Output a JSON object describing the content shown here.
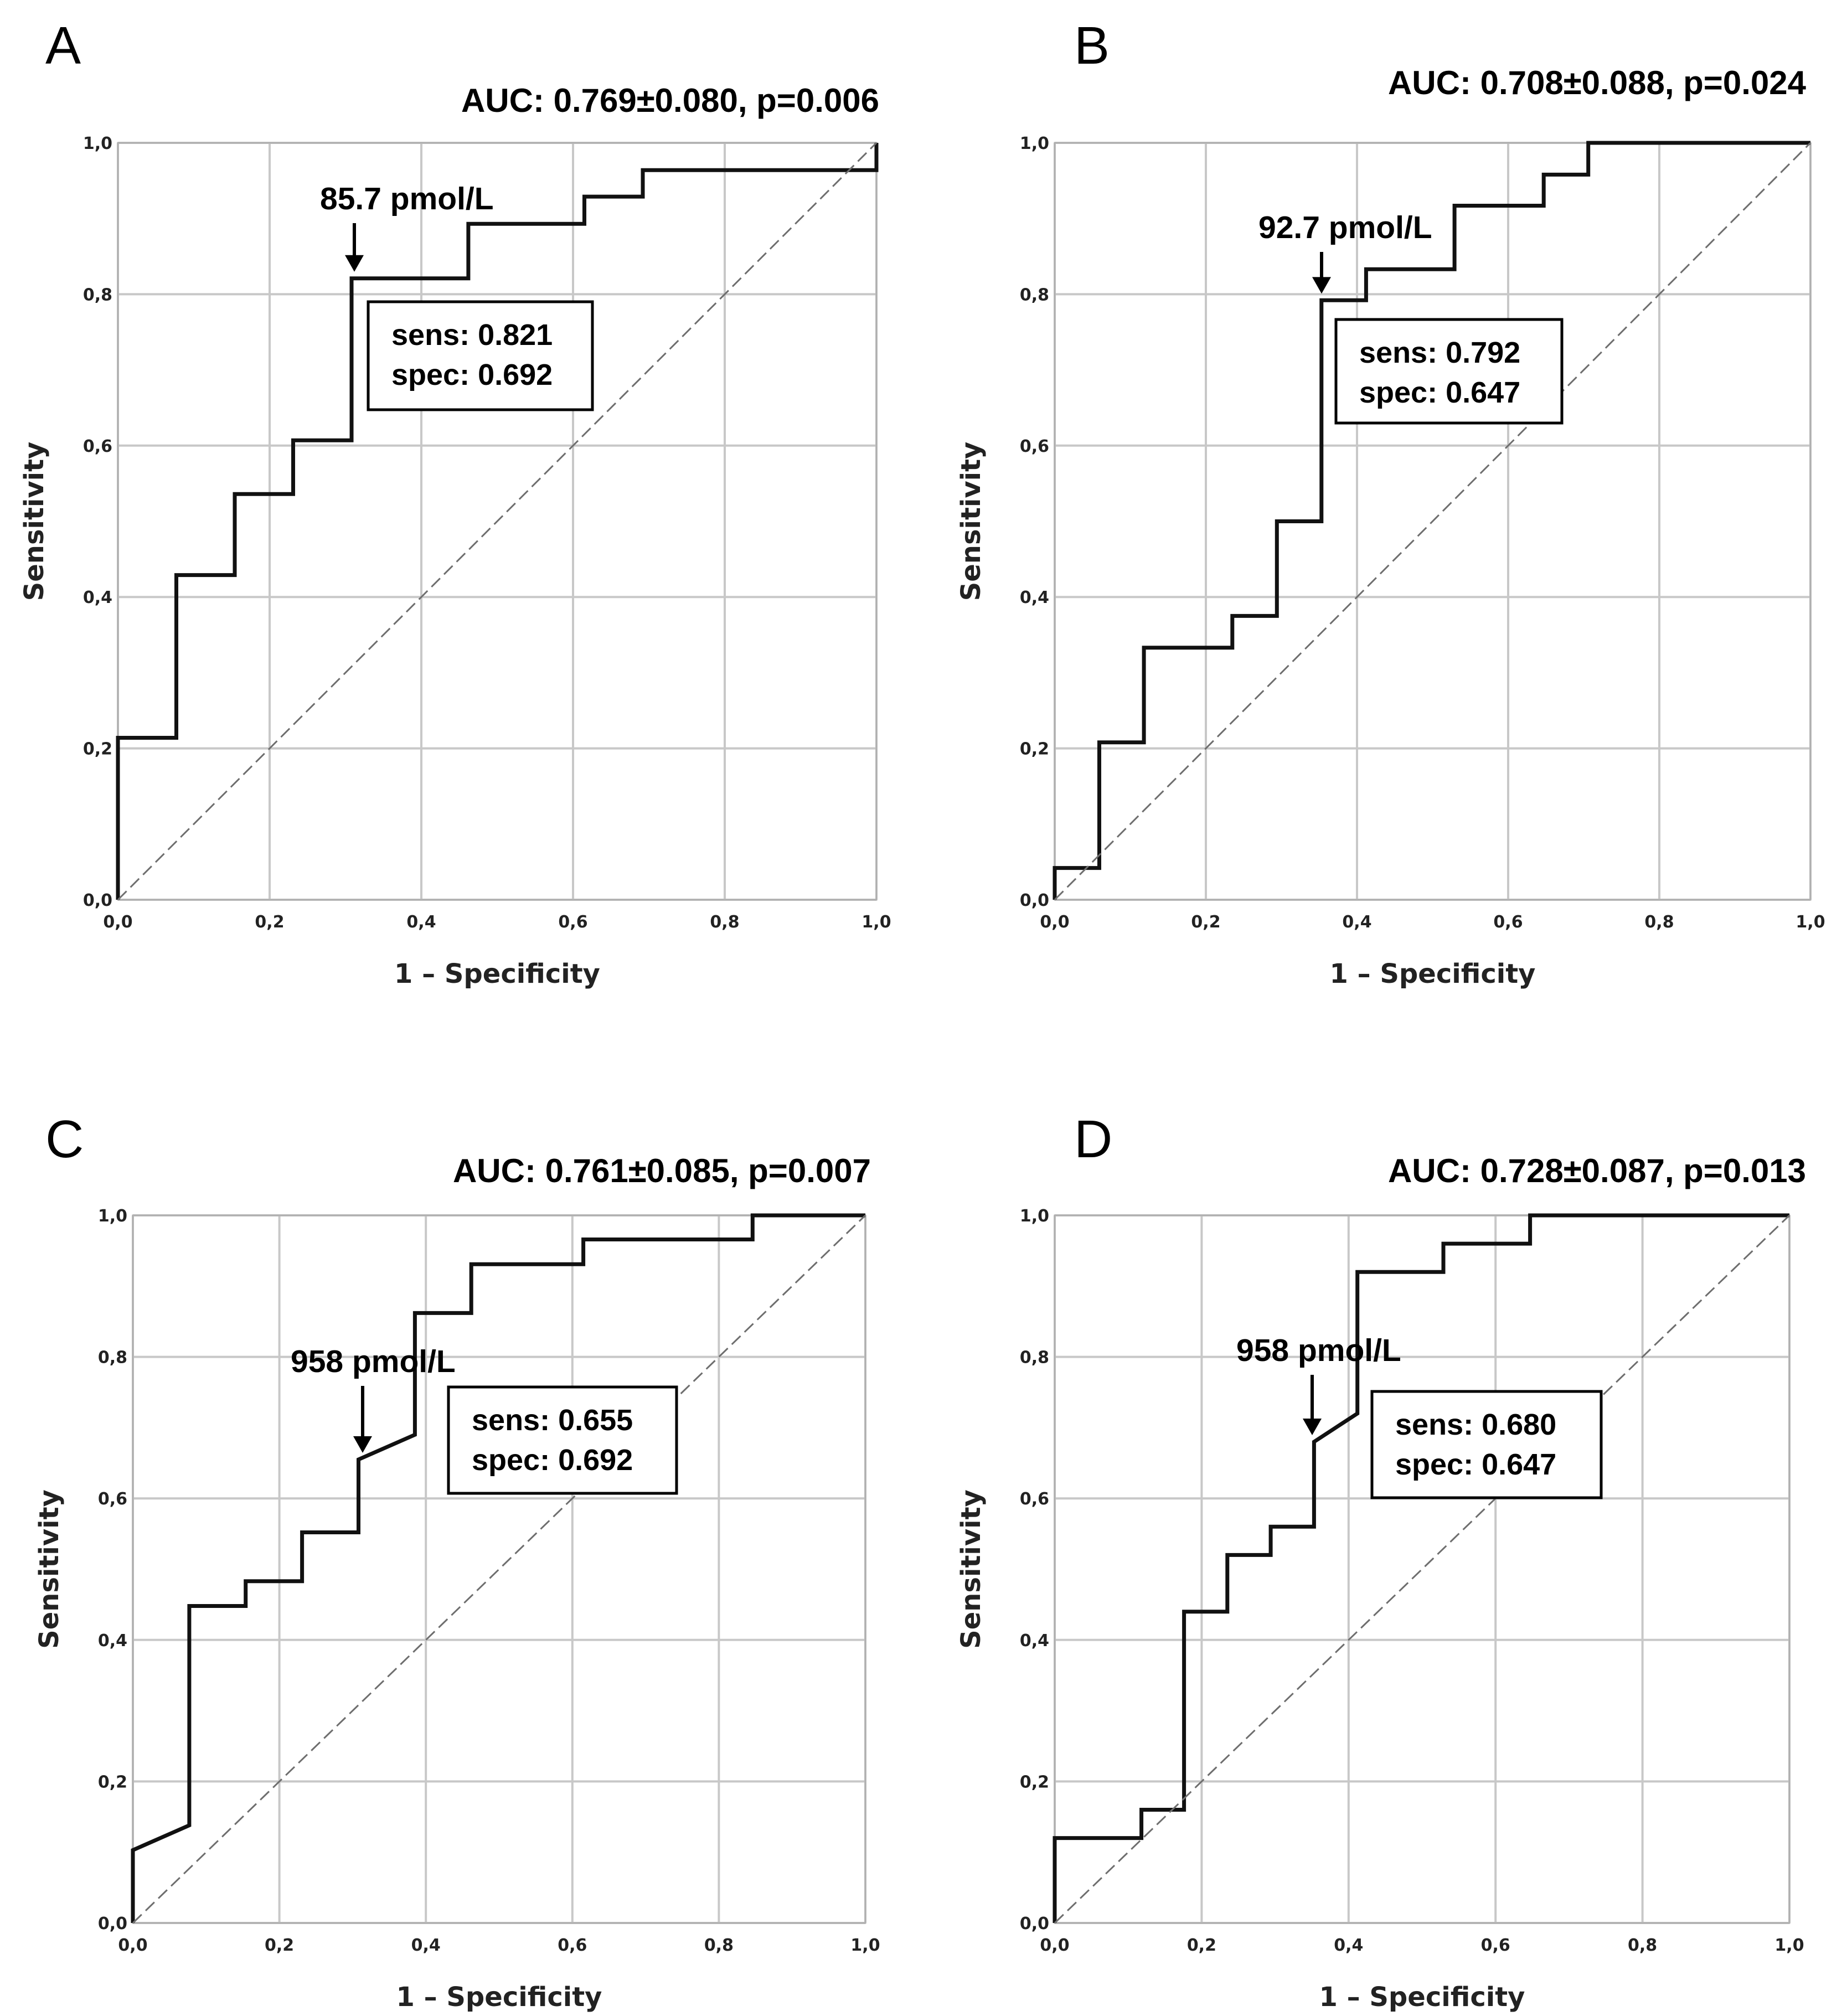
{
  "chart_data": [
    {
      "type": "line",
      "panel": "A",
      "auc_text": "AUC:  0.769±0.080, p=0.006",
      "cutoff_label": "85.7 pmol/L",
      "sens_text": "sens: 0.821",
      "spec_text": "spec: 0.692",
      "cutoff_point": [
        0.308,
        0.821
      ],
      "xlabel": "1 – Specificity",
      "ylabel": "Sensitivity",
      "xlim": [
        0,
        1
      ],
      "ylim": [
        0,
        1
      ],
      "xticks": [
        "0,0",
        "0,2",
        "0,4",
        "0,6",
        "0,8",
        "1,0"
      ],
      "yticks": [
        "0,0",
        "0,2",
        "0,4",
        "0,6",
        "0,8",
        "1,0"
      ],
      "series": [
        {
          "name": "ROC",
          "x": [
            0,
            0,
            0.077,
            0.077,
            0.154,
            0.154,
            0.231,
            0.231,
            0.308,
            0.308,
            0.462,
            0.462,
            0.615,
            0.615,
            0.692,
            0.692,
            1.0,
            1.0
          ],
          "y": [
            0,
            0.214,
            0.214,
            0.429,
            0.429,
            0.536,
            0.536,
            0.607,
            0.607,
            0.821,
            0.821,
            0.893,
            0.893,
            0.929,
            0.929,
            0.964,
            0.964,
            1.0
          ]
        },
        {
          "name": "Reference",
          "x": [
            0,
            1
          ],
          "y": [
            0,
            1
          ]
        }
      ]
    },
    {
      "type": "line",
      "panel": "B",
      "auc_text": "AUC:  0.708±0.088, p=0.024",
      "cutoff_label": "92.7 pmol/L",
      "sens_text": "sens: 0.792",
      "spec_text": "spec: 0.647",
      "cutoff_point": [
        0.353,
        0.792
      ],
      "xlabel": "1 – Specificity",
      "ylabel": "Sensitivity",
      "xlim": [
        0,
        1
      ],
      "ylim": [
        0,
        1
      ],
      "xticks": [
        "0,0",
        "0,2",
        "0,4",
        "0,6",
        "0,8",
        "1,0"
      ],
      "yticks": [
        "0,0",
        "0,2",
        "0,4",
        "0,6",
        "0,8",
        "1,0"
      ],
      "series": [
        {
          "name": "ROC",
          "x": [
            0,
            0,
            0.059,
            0.059,
            0.118,
            0.118,
            0.235,
            0.235,
            0.294,
            0.294,
            0.353,
            0.353,
            0.412,
            0.412,
            0.529,
            0.529,
            0.647,
            0.647,
            0.706,
            0.706,
            1.0
          ],
          "y": [
            0,
            0.042,
            0.042,
            0.208,
            0.208,
            0.333,
            0.333,
            0.375,
            0.375,
            0.5,
            0.5,
            0.792,
            0.792,
            0.833,
            0.833,
            0.917,
            0.917,
            0.958,
            0.958,
            1.0,
            1.0
          ]
        },
        {
          "name": "Reference",
          "x": [
            0,
            1
          ],
          "y": [
            0,
            1
          ]
        }
      ]
    },
    {
      "type": "line",
      "panel": "C",
      "auc_text": "AUC:  0.761±0.085, p=0.007",
      "cutoff_label": "958 pmol/L",
      "sens_text": "sens: 0.655",
      "spec_text": "spec: 0.692",
      "cutoff_point": [
        0.308,
        0.655
      ],
      "xlabel": "1 – Specificity",
      "ylabel": "Sensitivity",
      "xlim": [
        0,
        1
      ],
      "ylim": [
        0,
        1
      ],
      "xticks": [
        "0,0",
        "0,2",
        "0,4",
        "0,6",
        "0,8",
        "1,0"
      ],
      "yticks": [
        "0,0",
        "0,2",
        "0,4",
        "0,6",
        "0,8",
        "1,0"
      ],
      "series": [
        {
          "name": "ROC",
          "x": [
            0,
            0,
            0.077,
            0.077,
            0.154,
            0.154,
            0.231,
            0.231,
            0.308,
            0.308,
            0.385,
            0.385,
            0.462,
            0.462,
            0.615,
            0.615,
            0.846,
            0.846,
            1.0
          ],
          "y": [
            0,
            0.103,
            0.138,
            0.448,
            0.448,
            0.483,
            0.483,
            0.552,
            0.552,
            0.655,
            0.69,
            0.862,
            0.862,
            0.931,
            0.931,
            0.966,
            0.966,
            1.0,
            1.0
          ]
        },
        {
          "name": "Reference",
          "x": [
            0,
            1
          ],
          "y": [
            0,
            1
          ]
        }
      ]
    },
    {
      "type": "line",
      "panel": "D",
      "auc_text": "AUC:  0.728±0.087, p=0.013",
      "cutoff_label": "958 pmol/L",
      "sens_text": "sens: 0.680",
      "spec_text": "spec: 0.647",
      "cutoff_point": [
        0.353,
        0.68
      ],
      "xlabel": "1 – Specificity",
      "ylabel": "Sensitivity",
      "xlim": [
        0,
        1
      ],
      "ylim": [
        0,
        1
      ],
      "xticks": [
        "0,0",
        "0,2",
        "0,4",
        "0,6",
        "0,8",
        "1,0"
      ],
      "yticks": [
        "0,0",
        "0,2",
        "0,4",
        "0,6",
        "0,8",
        "1,0"
      ],
      "series": [
        {
          "name": "ROC",
          "x": [
            0,
            0,
            0.118,
            0.118,
            0.176,
            0.176,
            0.235,
            0.235,
            0.294,
            0.294,
            0.353,
            0.353,
            0.412,
            0.412,
            0.529,
            0.529,
            0.647,
            0.647,
            1.0
          ],
          "y": [
            0,
            0.12,
            0.12,
            0.16,
            0.16,
            0.44,
            0.44,
            0.52,
            0.52,
            0.56,
            0.56,
            0.68,
            0.72,
            0.92,
            0.92,
            0.96,
            0.96,
            1.0,
            1.0
          ]
        },
        {
          "name": "Reference",
          "x": [
            0,
            1
          ],
          "y": [
            0,
            1
          ]
        }
      ]
    }
  ]
}
